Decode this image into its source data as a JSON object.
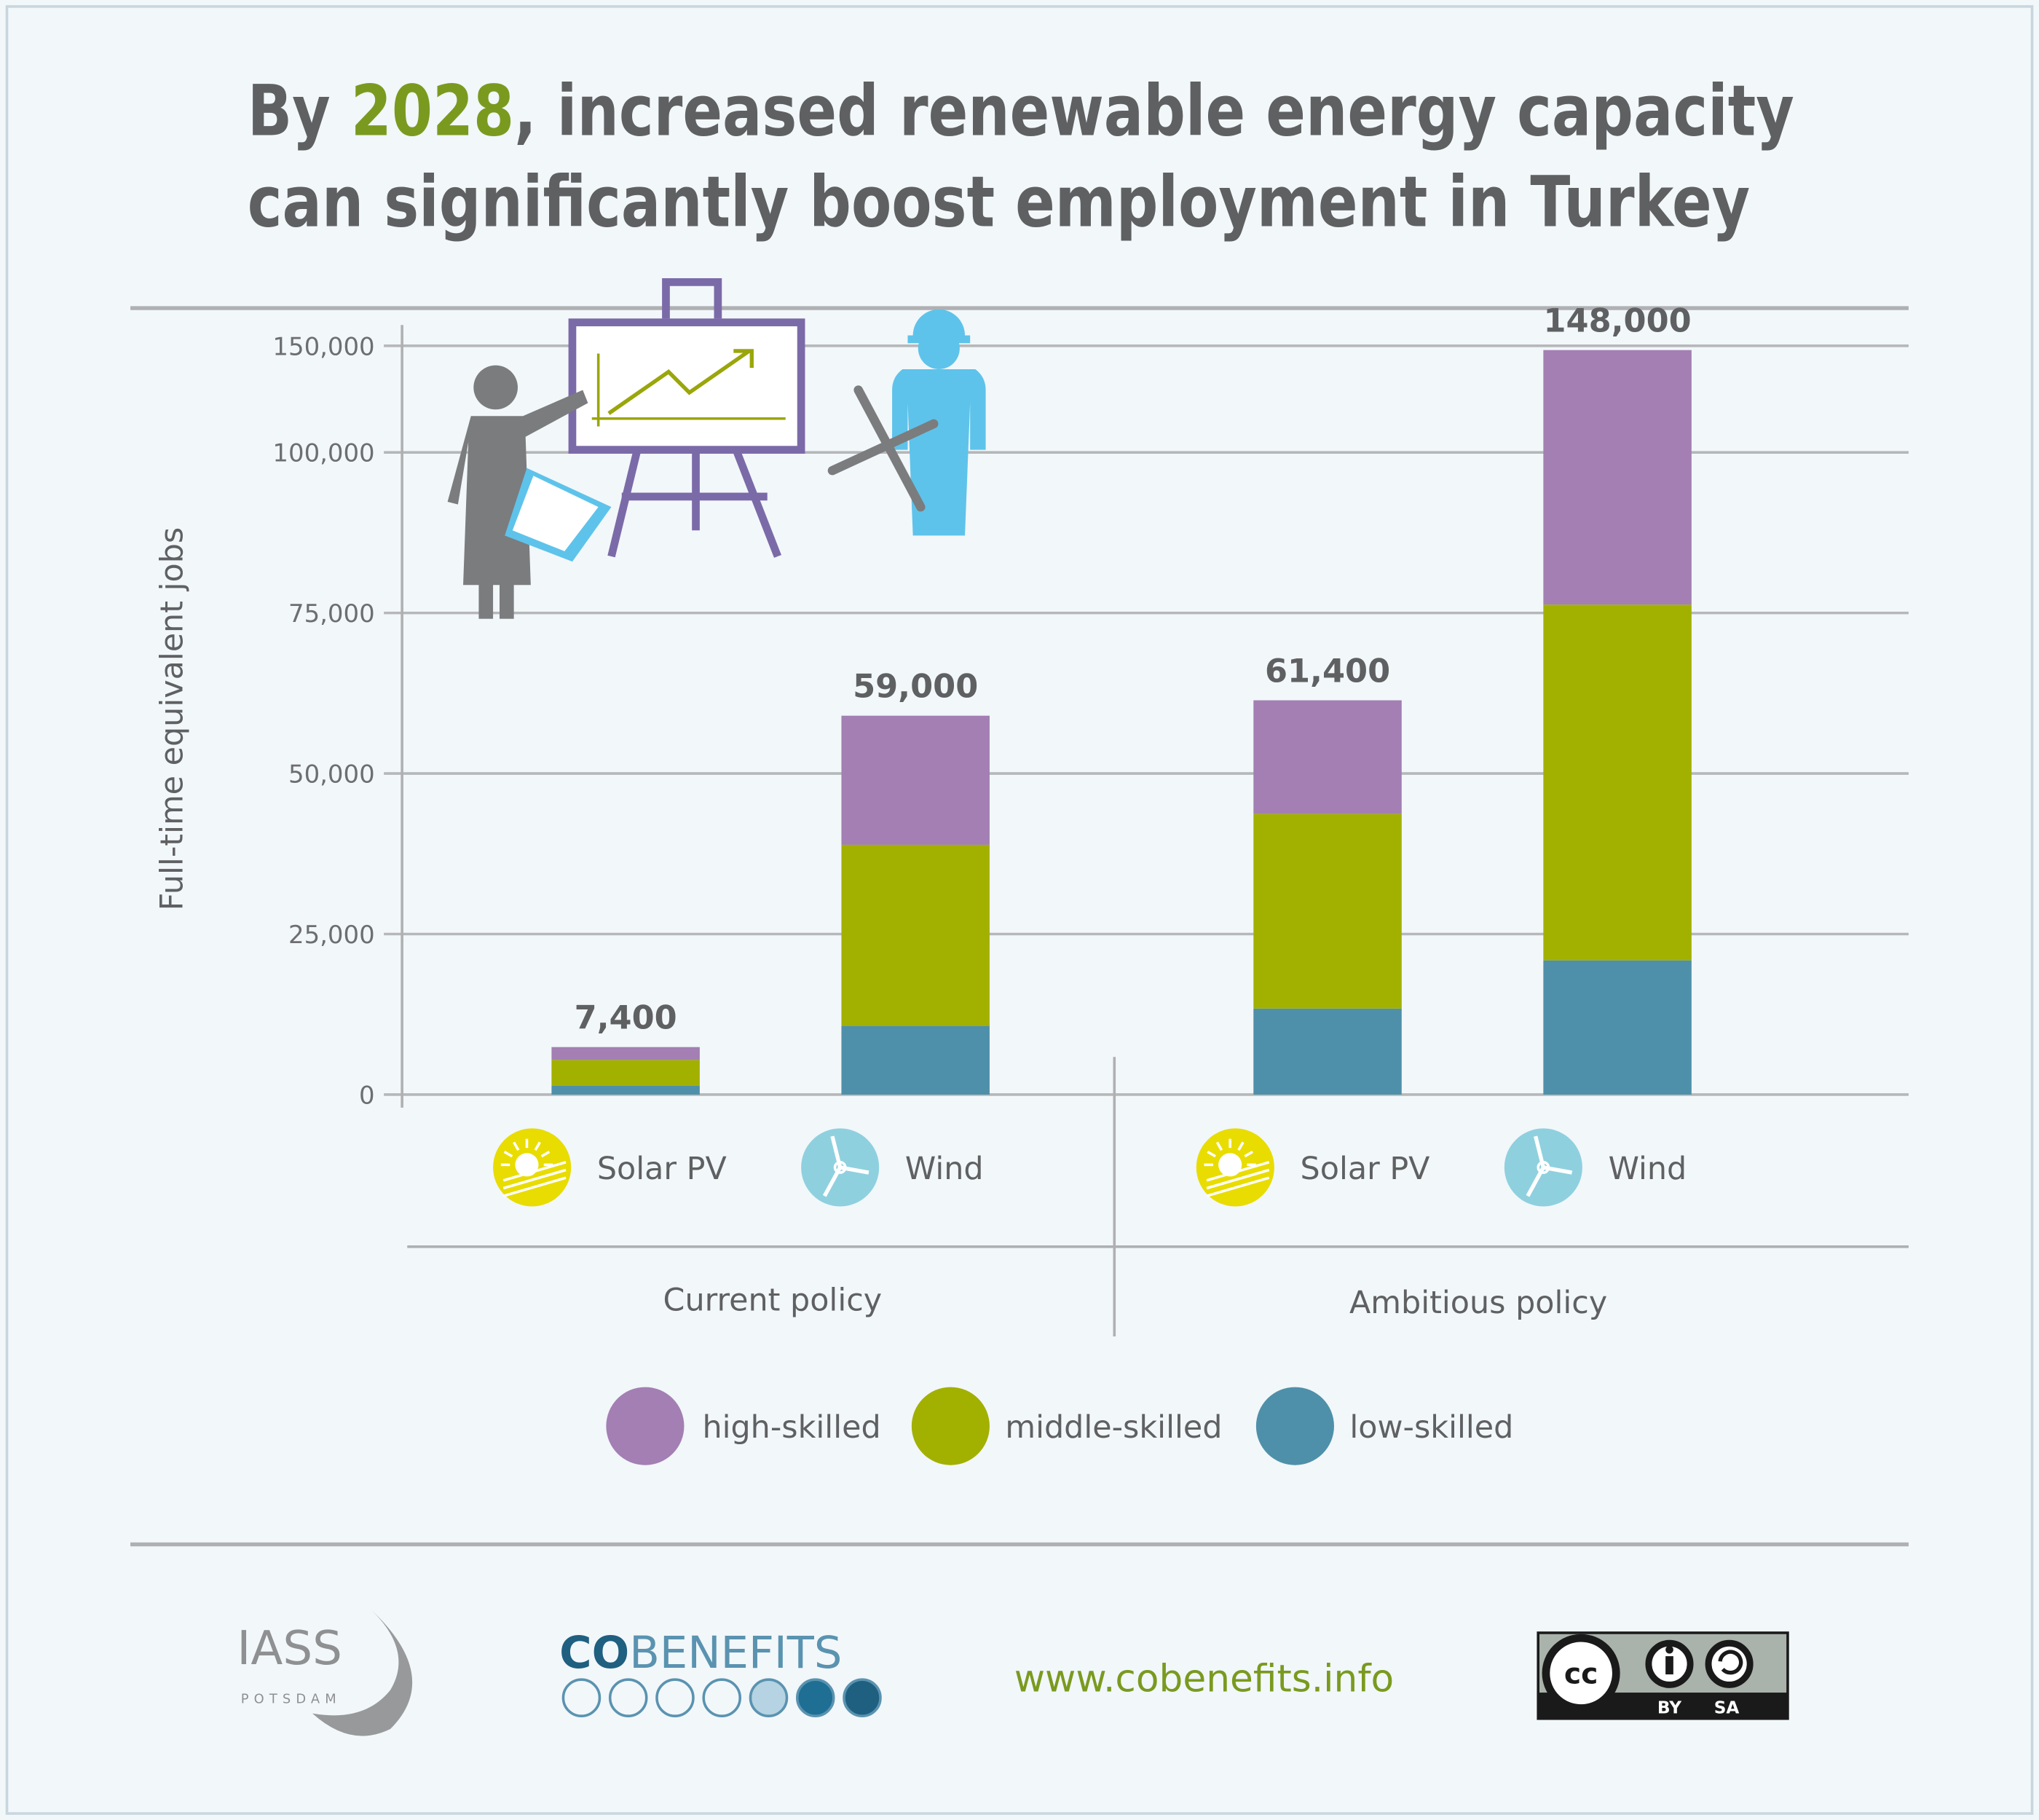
{
  "title": {
    "prefix": "By ",
    "highlight": "2028",
    "line1_rest": ", increased renewable energy capacity",
    "line2": "can significantly boost employment in Turkey",
    "highlight_color": "#7a9a1f"
  },
  "chart_data": {
    "type": "bar",
    "stacked": true,
    "ylabel": "Full-time equivalent  jobs",
    "yticks": [
      "0",
      "25,000",
      "50,000",
      "75,000",
      "100,000",
      "150,000"
    ],
    "ytick_values": [
      0,
      25000,
      50000,
      75000,
      100000,
      150000
    ],
    "ylim": [
      0,
      150000
    ],
    "grid": true,
    "groups": [
      {
        "label": "Current policy",
        "bars": [
          {
            "category": "Solar PV",
            "icon": "sun-icon",
            "total_label": "7,400",
            "values": {
              "low": 1400,
              "middle": 4000,
              "high": 2000
            }
          },
          {
            "category": "Wind",
            "icon": "wind-turbine-icon",
            "total_label": "59,000",
            "values": {
              "low": 10700,
              "middle": 28200,
              "high": 20100
            }
          }
        ]
      },
      {
        "label": "Ambitious policy",
        "bars": [
          {
            "category": "Solar PV",
            "icon": "sun-icon",
            "total_label": "61,400",
            "values": {
              "low": 13400,
              "middle": 30300,
              "high": 17700
            }
          },
          {
            "category": "Wind",
            "icon": "wind-turbine-icon",
            "total_label": "148,000",
            "values": {
              "low": 20900,
              "middle": 55400,
              "high": 71700
            }
          }
        ]
      }
    ],
    "series": [
      {
        "key": "high",
        "name": "high-skilled",
        "color": "#a37fb3"
      },
      {
        "key": "middle",
        "name": "middle-skilled",
        "color": "#a2b000"
      },
      {
        "key": "low",
        "name": "low-skilled",
        "color": "#4e90a9"
      }
    ],
    "legend_position": "bottom"
  },
  "footer": {
    "iass": "IASS",
    "iass_sub": "POTSDAM",
    "cobenefits_co": "CO",
    "cobenefits_rest": "BENEFITS",
    "url": "www.cobenefits.info",
    "license": "CC BY SA",
    "license_by": "BY",
    "license_sa": "SA"
  }
}
